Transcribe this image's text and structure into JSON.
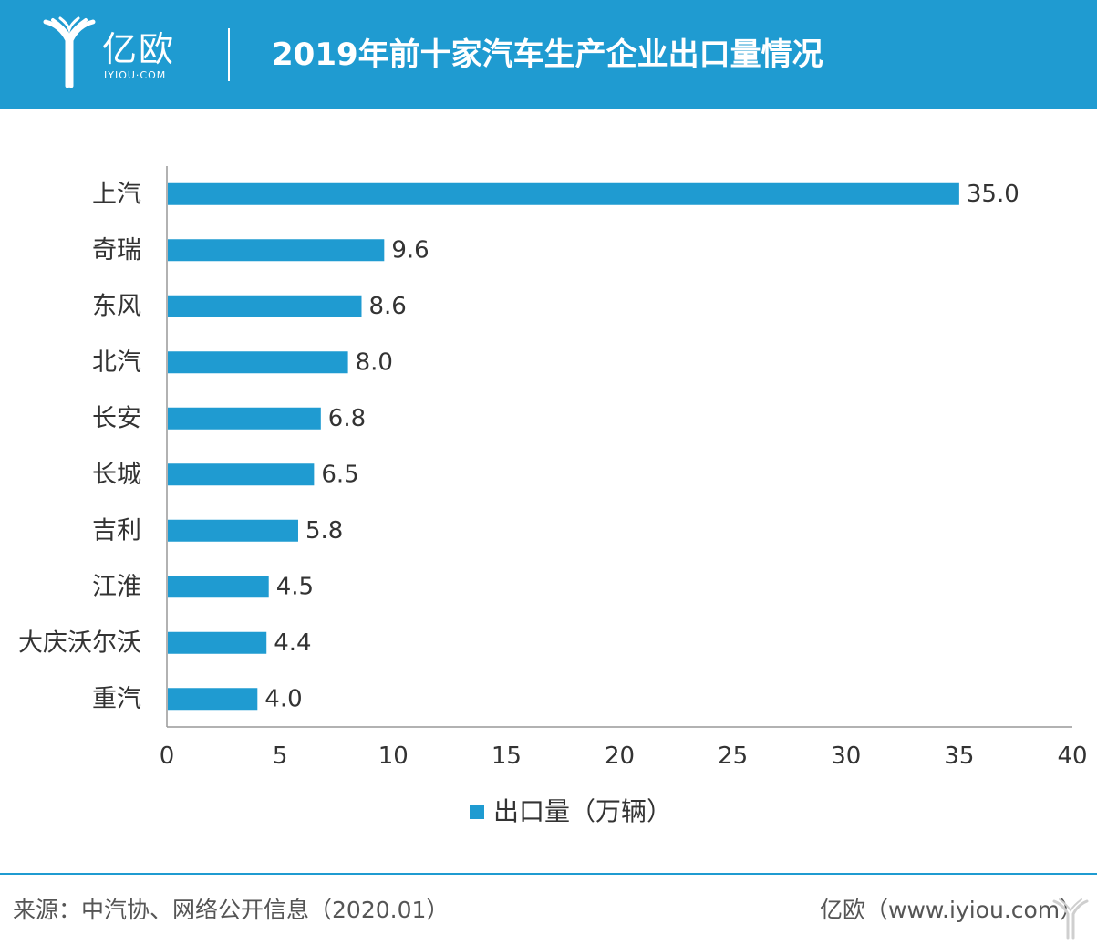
{
  "header": {
    "logo_cn": "亿欧",
    "logo_en": "IYIOU·COM",
    "title": "2019年前十家汽车生产企业出口量情况"
  },
  "chart_data": {
    "type": "bar",
    "orientation": "horizontal",
    "categories": [
      "上汽",
      "奇瑞",
      "东风",
      "北汽",
      "长安",
      "长城",
      "吉利",
      "江淮",
      "大庆沃尔沃",
      "重汽"
    ],
    "series": [
      {
        "name": "出口量（万辆）",
        "values": [
          35.0,
          9.6,
          8.6,
          8.0,
          6.8,
          6.5,
          5.8,
          4.5,
          4.4,
          4.0
        ],
        "value_labels": [
          "35.0",
          "9.6",
          "8.6",
          "8.0",
          "6.8",
          "6.5",
          "5.8",
          "4.5",
          "4.4",
          "4.0"
        ]
      }
    ],
    "xlim": [
      0,
      40
    ],
    "xticks": [
      "0",
      "5",
      "10",
      "15",
      "20",
      "25",
      "30",
      "35",
      "40"
    ],
    "xlabel": "",
    "ylabel": "",
    "grid": false,
    "legend": "bottom",
    "colors": {
      "bar": "#1f9bd1",
      "axis": "#999999",
      "text": "#333333"
    }
  },
  "legend": {
    "label": "出口量（万辆）"
  },
  "footer": {
    "source": "来源：中汽协、网络公开信息（2020.01）",
    "credit": "亿欧（www.iyiou.com）"
  },
  "colors": {
    "brand": "#1f9bd1",
    "header_text": "#ffffff"
  }
}
